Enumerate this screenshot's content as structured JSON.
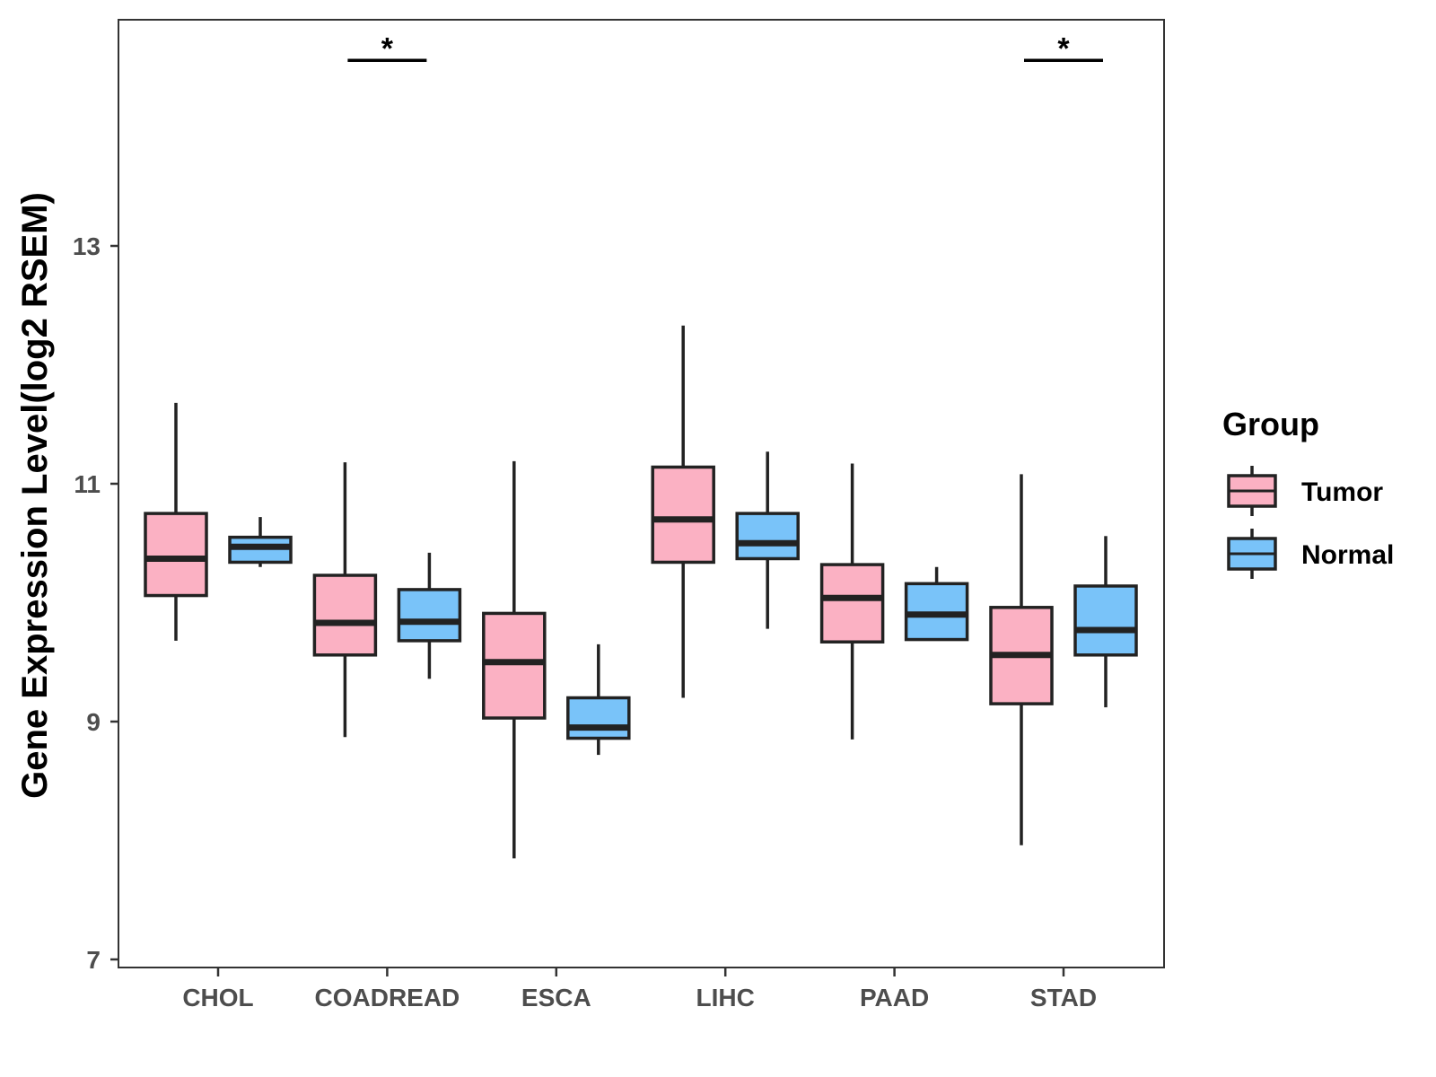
{
  "chart_data": {
    "type": "box",
    "title": "",
    "xlabel": "",
    "ylabel": "Gene Expression Level(log2 RSEM)",
    "ylim": [
      6.9,
      14.9
    ],
    "yticks": [
      7,
      9,
      11,
      13
    ],
    "grid": false,
    "categories": [
      "CHOL",
      "COADREAD",
      "ESCA",
      "LIHC",
      "PAAD",
      "STAD"
    ],
    "legend": {
      "title": "Group",
      "position": "right",
      "entries": [
        {
          "name": "Tumor",
          "color": "#FBB1C3"
        },
        {
          "name": "Normal",
          "color": "#79C3F9"
        }
      ]
    },
    "series": [
      {
        "name": "Tumor",
        "color": "#FBB1C3",
        "boxes": [
          {
            "category": "CHOL",
            "whisker_low": 9.68,
            "q1": 10.06,
            "median": 10.37,
            "q3": 10.75,
            "whisker_high": 11.68
          },
          {
            "category": "COADREAD",
            "whisker_low": 8.87,
            "q1": 9.56,
            "median": 9.83,
            "q3": 10.23,
            "whisker_high": 11.18
          },
          {
            "category": "ESCA",
            "whisker_low": 7.85,
            "q1": 9.03,
            "median": 9.5,
            "q3": 9.91,
            "whisker_high": 11.19
          },
          {
            "category": "LIHC",
            "whisker_low": 9.2,
            "q1": 10.34,
            "median": 10.7,
            "q3": 11.14,
            "whisker_high": 12.33
          },
          {
            "category": "PAAD",
            "whisker_low": 8.85,
            "q1": 9.67,
            "median": 10.04,
            "q3": 10.32,
            "whisker_high": 11.17
          },
          {
            "category": "STAD",
            "whisker_low": 7.96,
            "q1": 9.15,
            "median": 9.56,
            "q3": 9.96,
            "whisker_high": 11.08
          }
        ]
      },
      {
        "name": "Normal",
        "color": "#79C3F9",
        "boxes": [
          {
            "category": "CHOL",
            "whisker_low": 10.3,
            "q1": 10.34,
            "median": 10.47,
            "q3": 10.55,
            "whisker_high": 10.72
          },
          {
            "category": "COADREAD",
            "whisker_low": 9.36,
            "q1": 9.68,
            "median": 9.84,
            "q3": 10.11,
            "whisker_high": 10.42
          },
          {
            "category": "ESCA",
            "whisker_low": 8.72,
            "q1": 8.86,
            "median": 8.95,
            "q3": 9.2,
            "whisker_high": 9.65
          },
          {
            "category": "LIHC",
            "whisker_low": 9.78,
            "q1": 10.37,
            "median": 10.5,
            "q3": 10.75,
            "whisker_high": 11.27
          },
          {
            "category": "PAAD",
            "whisker_low": 9.69,
            "q1": 9.69,
            "median": 9.9,
            "q3": 10.16,
            "whisker_high": 10.3
          },
          {
            "category": "STAD",
            "whisker_low": 9.12,
            "q1": 9.56,
            "median": 9.77,
            "q3": 10.14,
            "whisker_high": 10.56
          }
        ]
      }
    ],
    "annotations": [
      {
        "category": "COADREAD",
        "label": "*",
        "y": 14.56
      },
      {
        "category": "STAD",
        "label": "*",
        "y": 14.56
      }
    ]
  }
}
